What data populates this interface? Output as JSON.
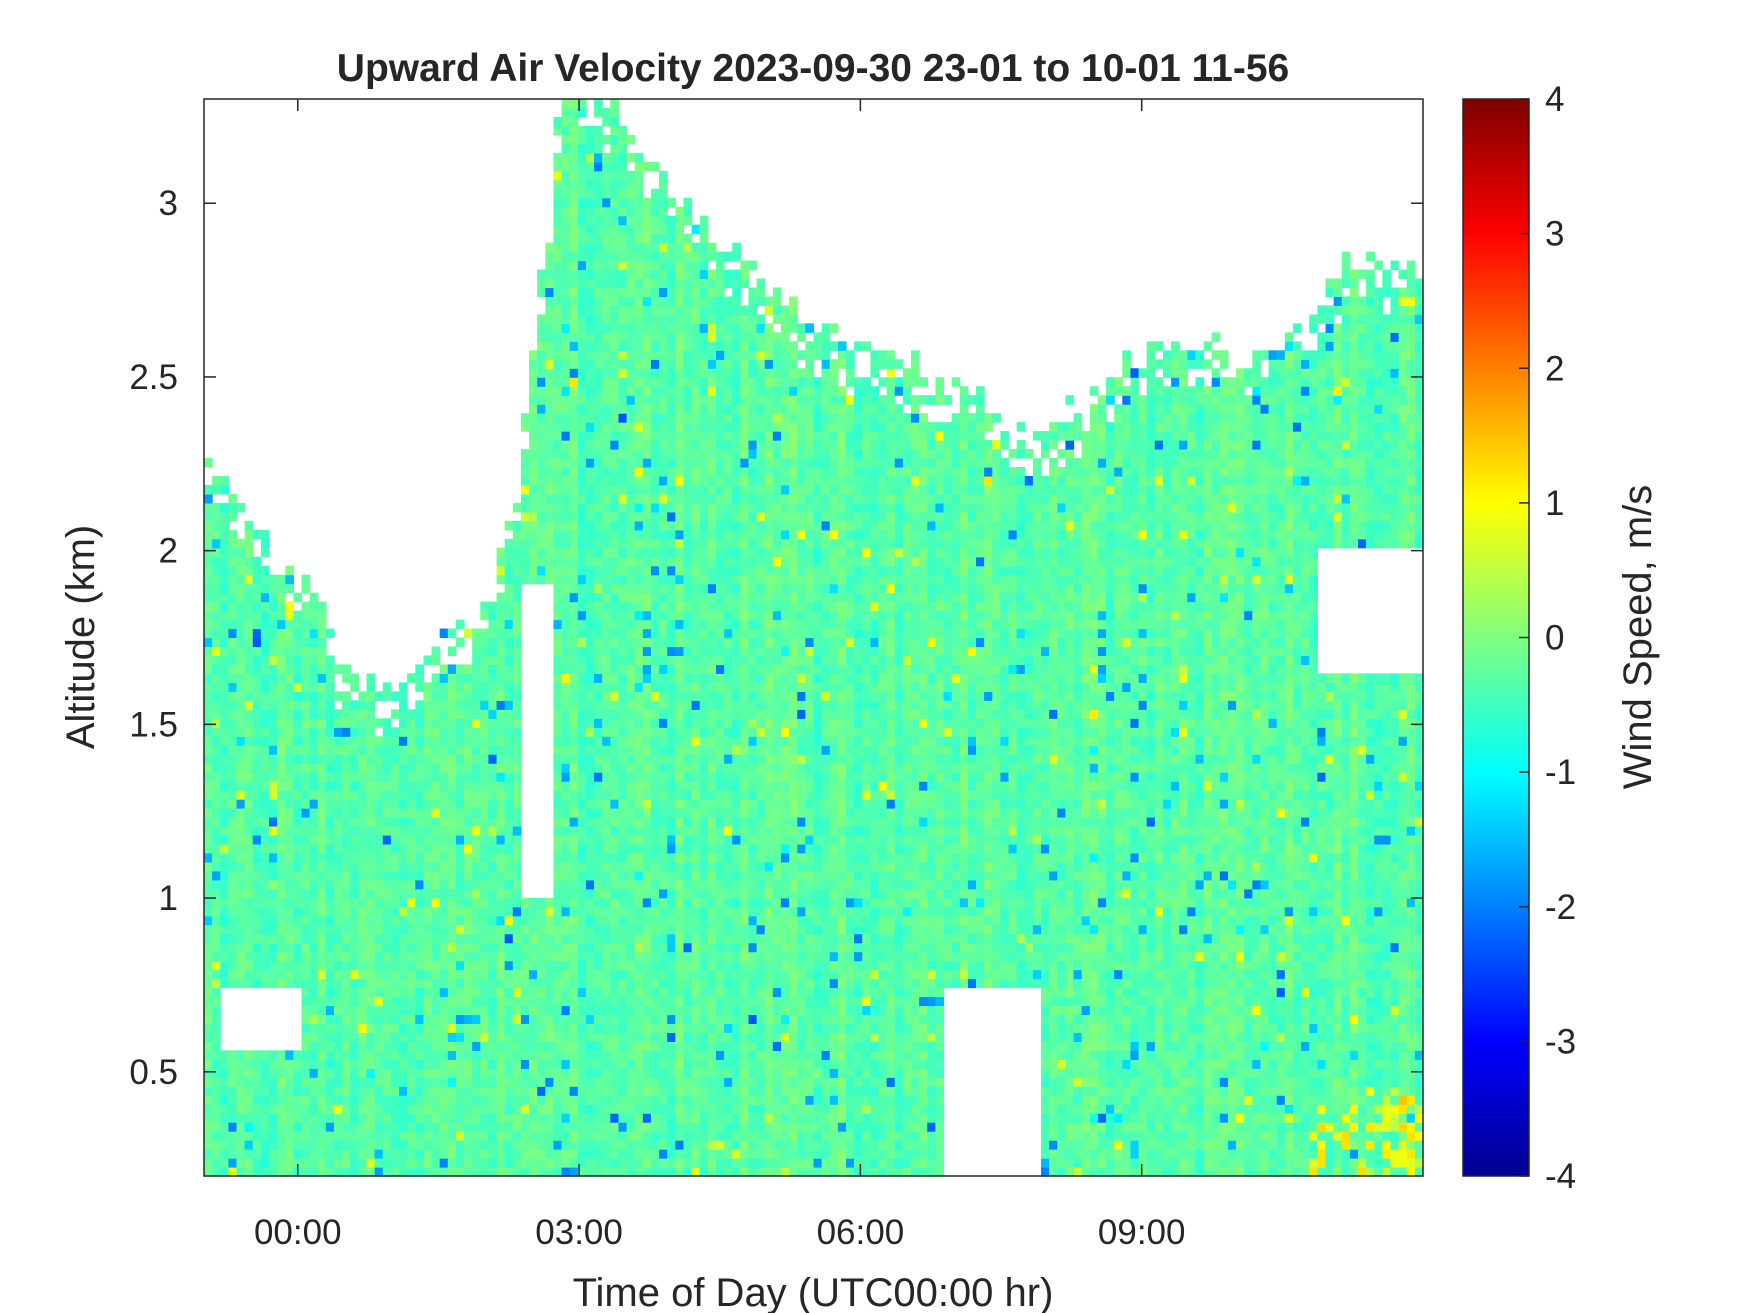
{
  "chart_data": {
    "type": "heatmap",
    "title": "Upward Air Velocity 2023-09-30 23-01 to 10-01 11-56",
    "xlabel": "Time of Day (UTC00:00 hr)",
    "ylabel": "Altitude (km)",
    "colorbar_label": "Wind Speed, m/s",
    "x_unit": "hours (UTC)",
    "xlim": [
      -1.0,
      12.0
    ],
    "ylim": [
      0.2,
      3.3
    ],
    "clim": [
      -4,
      4
    ],
    "colormap": "jet",
    "x_ticks": [
      {
        "value": 0,
        "label": "00:00"
      },
      {
        "value": 3,
        "label": "03:00"
      },
      {
        "value": 6,
        "label": "06:00"
      },
      {
        "value": 9,
        "label": "09:00"
      }
    ],
    "y_ticks": [
      {
        "value": 0.5,
        "label": "0.5"
      },
      {
        "value": 1.0,
        "label": "1"
      },
      {
        "value": 1.5,
        "label": "1.5"
      },
      {
        "value": 2.0,
        "label": "2"
      },
      {
        "value": 2.5,
        "label": "2.5"
      },
      {
        "value": 3.0,
        "label": "3"
      }
    ],
    "colorbar_ticks": [
      {
        "value": 4,
        "label": "4"
      },
      {
        "value": 3,
        "label": "3"
      },
      {
        "value": 2,
        "label": "2"
      },
      {
        "value": 1,
        "label": "1"
      },
      {
        "value": 0,
        "label": "0"
      },
      {
        "value": -1,
        "label": "-1"
      },
      {
        "value": -2,
        "label": "-2"
      },
      {
        "value": -3,
        "label": "-3"
      },
      {
        "value": -4,
        "label": "-4"
      }
    ],
    "value_typical": -0.3,
    "data_top_altitude_km": [
      [
        -1.0,
        2.3
      ],
      [
        -0.6,
        2.1
      ],
      [
        -0.2,
        2.0
      ],
      [
        0.2,
        1.9
      ],
      [
        0.5,
        1.65
      ],
      [
        1.0,
        1.6
      ],
      [
        1.5,
        1.75
      ],
      [
        2.0,
        1.85
      ],
      [
        2.4,
        2.3
      ],
      [
        2.8,
        3.3
      ],
      [
        3.3,
        3.3
      ],
      [
        3.8,
        3.1
      ],
      [
        4.3,
        2.95
      ],
      [
        4.8,
        2.8
      ],
      [
        5.3,
        2.7
      ],
      [
        5.8,
        2.62
      ],
      [
        6.3,
        2.6
      ],
      [
        6.8,
        2.5
      ],
      [
        7.3,
        2.45
      ],
      [
        7.8,
        2.35
      ],
      [
        8.3,
        2.42
      ],
      [
        8.8,
        2.55
      ],
      [
        9.3,
        2.6
      ],
      [
        9.8,
        2.62
      ],
      [
        10.3,
        2.55
      ],
      [
        10.8,
        2.7
      ],
      [
        11.2,
        2.85
      ],
      [
        11.6,
        2.8
      ],
      [
        12.0,
        2.8
      ]
    ],
    "gaps": [
      {
        "x": [
          -0.8,
          0.0
        ],
        "y": [
          0.55,
          0.75
        ]
      },
      {
        "x": [
          6.9,
          7.9
        ],
        "y": [
          0.2,
          0.75
        ]
      },
      {
        "x": [
          2.4,
          2.75
        ],
        "y": [
          1.0,
          1.9
        ]
      },
      {
        "x": [
          10.9,
          12.0
        ],
        "y": [
          1.65,
          2.0
        ]
      }
    ]
  }
}
